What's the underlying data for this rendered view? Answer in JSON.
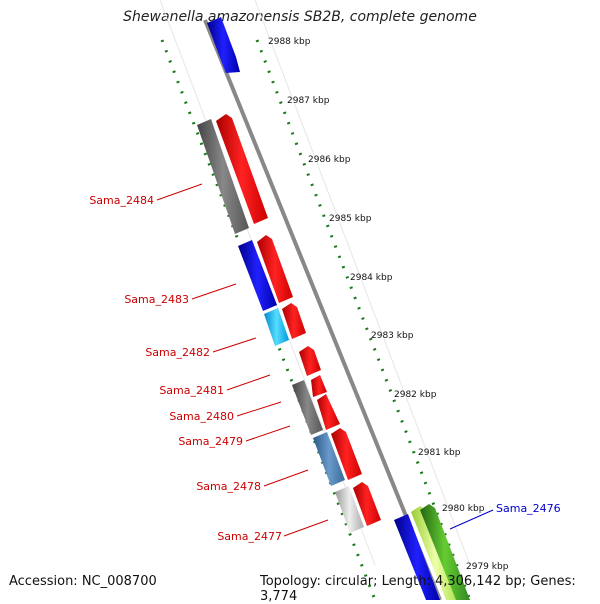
{
  "title": "Shewanella amazonensis SB2B, complete genome",
  "footer": {
    "accession": "Accession: NC_008700",
    "topology": "Topology: circular; Length: 4,306,142 bp; Genes: 3,774"
  },
  "scale_ticks": [
    "2988 kbp",
    "2987 kbp",
    "2986 kbp",
    "2985 kbp",
    "2984 kbp",
    "2983 kbp",
    "2982 kbp",
    "2981 kbp",
    "2980 kbp",
    "2979 kbp"
  ],
  "gene_labels": [
    {
      "id": "Sama_2484",
      "color": "#cc0000"
    },
    {
      "id": "Sama_2483",
      "color": "#cc0000"
    },
    {
      "id": "Sama_2482",
      "color": "#cc0000"
    },
    {
      "id": "Sama_2481",
      "color": "#cc0000"
    },
    {
      "id": "Sama_2480",
      "color": "#cc0000"
    },
    {
      "id": "Sama_2479",
      "color": "#cc0000"
    },
    {
      "id": "Sama_2478",
      "color": "#cc0000"
    },
    {
      "id": "Sama_2477",
      "color": "#cc0000"
    },
    {
      "id": "Sama_2476",
      "color": "#0000cc"
    }
  ],
  "colors": {
    "backbone": "#888888",
    "scale_dots": "#1a7a1a",
    "cds": "#ff0000",
    "blue": "#1010dd",
    "gray": "#666666",
    "green": "#44aa22"
  }
}
